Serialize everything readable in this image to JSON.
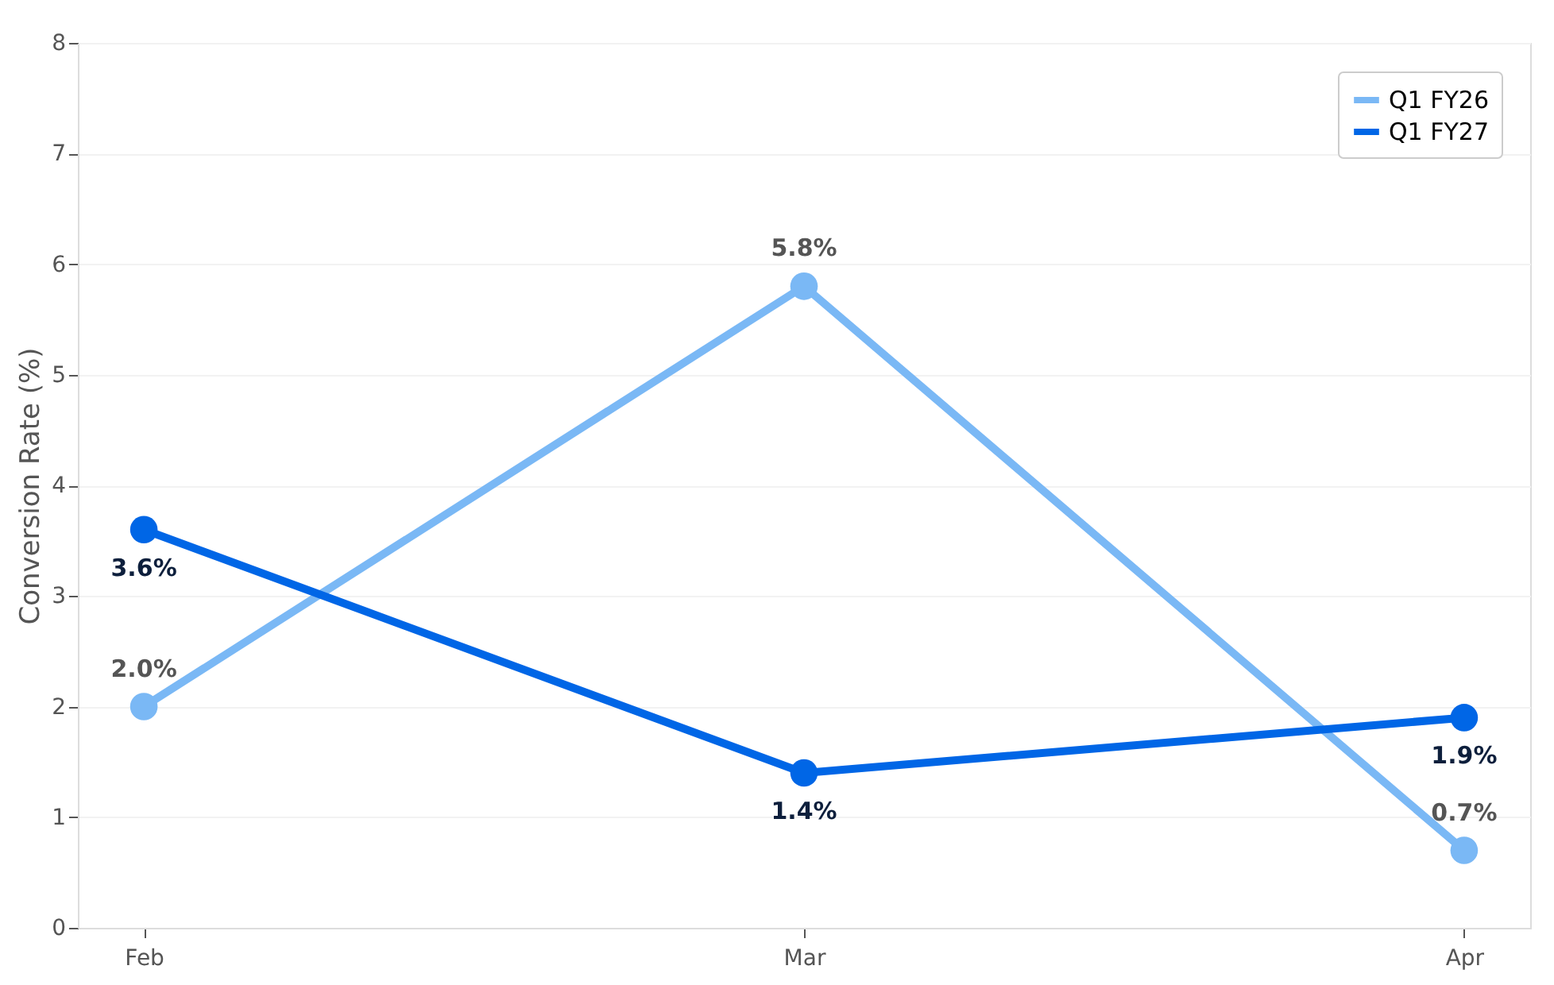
{
  "chart_data": {
    "type": "line",
    "ylabel": "Conversion Rate (%)",
    "categories": [
      "Feb",
      "Mar",
      "Apr"
    ],
    "series": [
      {
        "name": "Q1 FY26",
        "color": "#7ab8f5",
        "values": [
          2.0,
          5.8,
          0.7
        ],
        "value_labels": [
          "2.0%",
          "5.8%",
          "0.7%"
        ]
      },
      {
        "name": "Q1 FY27",
        "color": "#0066e6",
        "values": [
          3.6,
          1.4,
          1.9
        ],
        "value_labels": [
          "3.6%",
          "1.4%",
          "1.9%"
        ]
      }
    ],
    "ylim": [
      0,
      8
    ],
    "yticks": [
      0,
      1,
      2,
      3,
      4,
      5,
      6,
      7,
      8
    ],
    "grid": "y",
    "legend": "top right",
    "marker": "circle",
    "line_style": "solid"
  }
}
